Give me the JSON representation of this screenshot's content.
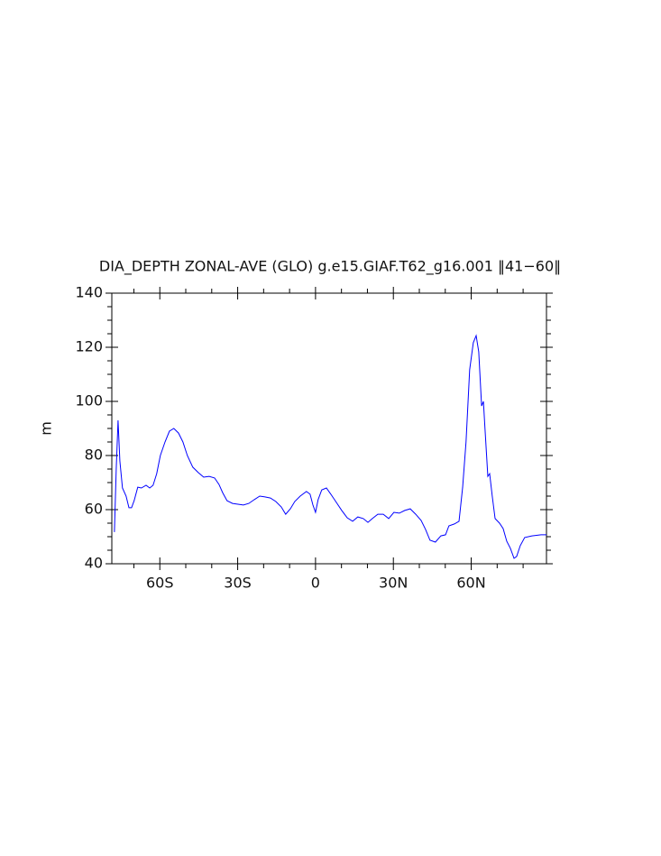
{
  "chart_data": {
    "type": "line",
    "title": "DIA_DEPTH ZONAL-AVE (GLO) g.e15.GIAF.T62_g16.001 ‖41−60‖",
    "y_label": "m",
    "x": [
      -77.5,
      -76.8,
      -76.1,
      -75.4,
      -74.4,
      -73,
      -71.9,
      -70.9,
      -69.9,
      -68.5,
      -67.1,
      -65.3,
      -63.9,
      -62.6,
      -61.2,
      -59.8,
      -58,
      -56.3,
      -54.6,
      -52.8,
      -51.1,
      -49.4,
      -47.3,
      -45.2,
      -43.1,
      -41,
      -38.9,
      -37.2,
      -35.8,
      -34.1,
      -32,
      -29.9,
      -27.8,
      -25.7,
      -23.6,
      -21.5,
      -19.5,
      -17.4,
      -15.3,
      -13.2,
      -11.5,
      -9.7,
      -8,
      -5.9,
      -3.5,
      -2.1,
      -1,
      0,
      1,
      2.4,
      4.2,
      5.9,
      8,
      10.1,
      12.2,
      14.3,
      16.3,
      18.4,
      20.2,
      21.9,
      24,
      26.1,
      28.2,
      30.2,
      32.3,
      34.4,
      36.5,
      38.6,
      40.7,
      42.4,
      44.1,
      46.2,
      48.3,
      50.1,
      51.4,
      53.5,
      55.3,
      56.7,
      58,
      59.4,
      60.8,
      61.9,
      62.9,
      64,
      64.7,
      65.3,
      66.4,
      67.1,
      68.1,
      69.2,
      70.9,
      72.3,
      73.7,
      75.1,
      76.5,
      77.5,
      78.9,
      80.6,
      83.4,
      86.9,
      89
    ],
    "series": [
      {
        "name": "DIA_DEPTH",
        "color": "#0000ff",
        "values": [
          51.7,
          75,
          93,
          78,
          68,
          65,
          60.7,
          60.7,
          63.3,
          68.3,
          68,
          69,
          68,
          69,
          73.3,
          80,
          85,
          89,
          90,
          88.3,
          85,
          80,
          75.7,
          73.7,
          72,
          72.3,
          71.7,
          69.3,
          66.3,
          63.3,
          62.3,
          62,
          61.7,
          62.3,
          63.7,
          65,
          64.7,
          64.3,
          63,
          61,
          58.3,
          60.3,
          63,
          65,
          66.7,
          65.7,
          61.7,
          59,
          63.7,
          67.3,
          68,
          65.7,
          62.7,
          59.7,
          57,
          55.7,
          57.3,
          56.7,
          55.3,
          56.7,
          58.3,
          58.3,
          56.7,
          59,
          58.7,
          59.7,
          60.3,
          58.3,
          56,
          52.7,
          48.7,
          48,
          50.3,
          50.7,
          54,
          54.7,
          55.7,
          68.3,
          85,
          111.7,
          121.7,
          124.3,
          118.3,
          98.3,
          100,
          90,
          72.3,
          73.3,
          65,
          56.7,
          55,
          53,
          48.3,
          45.7,
          42,
          42.7,
          46.7,
          49.7,
          50.3,
          50.7,
          50.7
        ]
      }
    ],
    "xlim": [
      -78.5,
      89
    ],
    "ylim": [
      40,
      140
    ],
    "xticks": [
      {
        "value": -60,
        "label": "60S"
      },
      {
        "value": -30,
        "label": "30S"
      },
      0,
      {
        "value": 30,
        "label": "30N"
      },
      {
        "value": 60,
        "label": "60N"
      }
    ],
    "xminorticks": [
      -70,
      -50,
      -40,
      -20,
      -10,
      10,
      20,
      40,
      50,
      70,
      80
    ],
    "yticks": [
      40,
      60,
      80,
      100,
      120,
      140
    ],
    "yminorticks": [
      45,
      50,
      55,
      65,
      70,
      75,
      85,
      90,
      95,
      105,
      110,
      115,
      125,
      130,
      135
    ]
  }
}
